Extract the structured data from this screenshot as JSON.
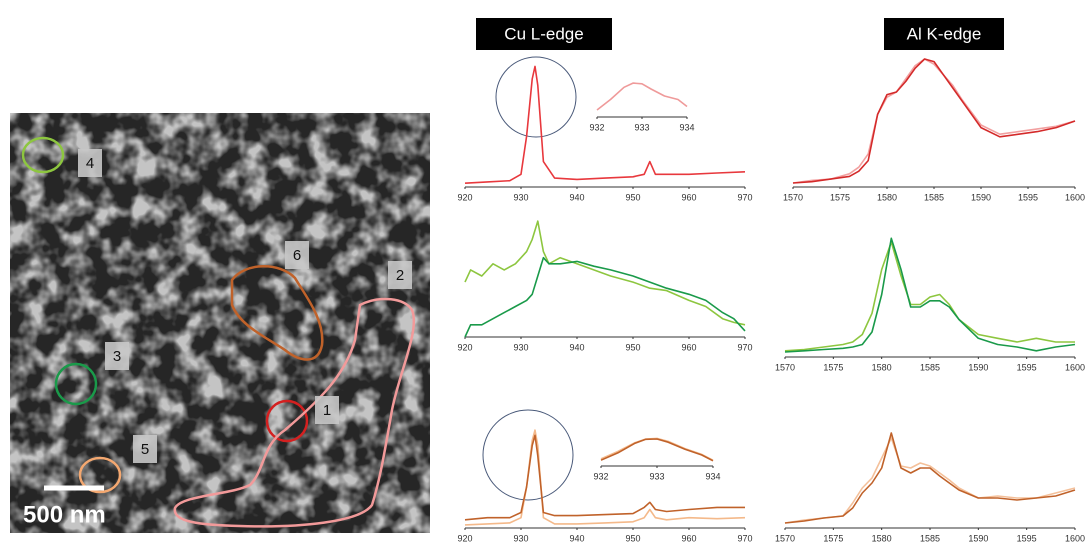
{
  "figure": {
    "headers": [
      "Cu L-edge",
      "Al K-edge"
    ],
    "scale_bar": "500 nm",
    "region_labels": [
      "1",
      "2",
      "3",
      "4",
      "5",
      "6"
    ]
  },
  "chart_data": [
    {
      "type": "line",
      "x": [
        920,
        924,
        928,
        930,
        931,
        932,
        932.5,
        933,
        934,
        936,
        940,
        945,
        950,
        952,
        953,
        954,
        956,
        960,
        965,
        970
      ],
      "series": [
        {
          "name": "Cu region 1",
          "color": "#e8383d",
          "values": [
            0.03,
            0.04,
            0.05,
            0.1,
            0.4,
            0.85,
            0.95,
            0.8,
            0.2,
            0.07,
            0.06,
            0.07,
            0.08,
            0.1,
            0.2,
            0.1,
            0.1,
            0.1,
            0.11,
            0.12
          ]
        }
      ],
      "xlim": [
        920,
        970
      ],
      "xticks": [
        920,
        930,
        940,
        950,
        960,
        970
      ],
      "ylim": [
        0,
        1
      ]
    },
    {
      "type": "line",
      "x": [
        932,
        932.3,
        932.6,
        932.8,
        933,
        933.2,
        933.5,
        933.8,
        934
      ],
      "series": [
        {
          "name": "Cu region 1 zoom",
          "color": "#ef9a9a",
          "values": [
            0.2,
            0.5,
            0.85,
            0.97,
            0.95,
            0.8,
            0.6,
            0.5,
            0.3
          ]
        }
      ],
      "xlim": [
        932,
        934
      ],
      "xticks": [
        932,
        933,
        934
      ],
      "ylim": [
        0,
        1
      ]
    },
    {
      "type": "line",
      "x": [
        920,
        921,
        923,
        925,
        927,
        929,
        931,
        932,
        933,
        934,
        935,
        937,
        940,
        943,
        946,
        950,
        953,
        956,
        960,
        963,
        966,
        968,
        970
      ],
      "series": [
        {
          "name": "Cu region 4",
          "color": "#8dc63f",
          "values": [
            0.45,
            0.55,
            0.5,
            0.6,
            0.55,
            0.6,
            0.7,
            0.8,
            0.95,
            0.7,
            0.6,
            0.65,
            0.6,
            0.55,
            0.5,
            0.45,
            0.4,
            0.38,
            0.3,
            0.25,
            0.15,
            0.12,
            0.1
          ]
        },
        {
          "name": "Cu region 3",
          "color": "#1a9a4a",
          "values": [
            0.0,
            0.1,
            0.1,
            0.15,
            0.2,
            0.25,
            0.3,
            0.35,
            0.5,
            0.65,
            0.6,
            0.6,
            0.62,
            0.58,
            0.55,
            0.5,
            0.45,
            0.4,
            0.35,
            0.3,
            0.2,
            0.15,
            0.05
          ]
        }
      ],
      "xlim": [
        920,
        970
      ],
      "xticks": [
        920,
        930,
        940,
        950,
        960,
        970
      ],
      "ylim": [
        0,
        1
      ]
    },
    {
      "type": "line",
      "x": [
        920,
        924,
        928,
        930,
        931,
        932,
        932.5,
        933,
        934,
        936,
        940,
        945,
        950,
        952,
        953,
        954,
        956,
        960,
        965,
        970
      ],
      "series": [
        {
          "name": "Cu region 5",
          "color": "#f4b98a",
          "values": [
            0.03,
            0.04,
            0.05,
            0.1,
            0.4,
            0.85,
            0.95,
            0.8,
            0.1,
            0.04,
            0.04,
            0.05,
            0.06,
            0.1,
            0.18,
            0.1,
            0.08,
            0.1,
            0.09,
            0.1
          ]
        },
        {
          "name": "Cu region 6",
          "color": "#c0622a",
          "values": [
            0.08,
            0.1,
            0.1,
            0.15,
            0.4,
            0.8,
            0.9,
            0.7,
            0.15,
            0.12,
            0.12,
            0.13,
            0.14,
            0.2,
            0.25,
            0.18,
            0.16,
            0.18,
            0.2,
            0.2
          ]
        }
      ],
      "xlim": [
        920,
        970
      ],
      "xticks": [
        920,
        930,
        940,
        950,
        960,
        970
      ],
      "ylim": [
        0,
        1
      ]
    },
    {
      "type": "line",
      "x": [
        932,
        932.3,
        932.6,
        932.8,
        933,
        933.2,
        933.5,
        933.8,
        934
      ],
      "series": [
        {
          "name": "Cu region 5 zoom",
          "color": "#f4b98a",
          "values": [
            0.25,
            0.5,
            0.8,
            0.93,
            0.95,
            0.85,
            0.6,
            0.4,
            0.2
          ]
        },
        {
          "name": "Cu region 6 zoom",
          "color": "#c0622a",
          "values": [
            0.2,
            0.45,
            0.78,
            0.92,
            0.93,
            0.82,
            0.58,
            0.38,
            0.18
          ]
        }
      ],
      "xlim": [
        932,
        934
      ],
      "xticks": [
        932,
        933,
        934
      ],
      "ylim": [
        0,
        1
      ]
    },
    {
      "type": "line",
      "x": [
        1570,
        1572,
        1574,
        1576,
        1577,
        1578,
        1579,
        1580,
        1581,
        1582,
        1583,
        1584,
        1585,
        1586,
        1587,
        1588,
        1590,
        1592,
        1594,
        1596,
        1598,
        1600
      ],
      "series": [
        {
          "name": "Al region 2",
          "color": "#f2a0a0",
          "values": [
            0.03,
            0.05,
            0.06,
            0.1,
            0.15,
            0.25,
            0.55,
            0.68,
            0.72,
            0.82,
            0.92,
            0.97,
            0.93,
            0.85,
            0.77,
            0.66,
            0.47,
            0.4,
            0.42,
            0.44,
            0.46,
            0.5
          ]
        },
        {
          "name": "Al region 1",
          "color": "#d42a2a",
          "values": [
            0.03,
            0.04,
            0.06,
            0.08,
            0.12,
            0.2,
            0.55,
            0.7,
            0.72,
            0.8,
            0.9,
            0.97,
            0.95,
            0.85,
            0.75,
            0.65,
            0.45,
            0.38,
            0.4,
            0.42,
            0.45,
            0.5
          ]
        }
      ],
      "xlim": [
        1570,
        1600
      ],
      "xticks": [
        1570,
        1575,
        1580,
        1585,
        1590,
        1595,
        1600
      ],
      "ylim": [
        0,
        1
      ]
    },
    {
      "type": "line",
      "x": [
        1570,
        1572,
        1574,
        1576,
        1577,
        1578,
        1579,
        1580,
        1581,
        1582,
        1583,
        1584,
        1585,
        1586,
        1587,
        1588,
        1590,
        1592,
        1594,
        1596,
        1598,
        1600
      ],
      "series": [
        {
          "name": "Al region 4",
          "color": "#8dc63f",
          "values": [
            0.05,
            0.06,
            0.08,
            0.1,
            0.12,
            0.18,
            0.35,
            0.7,
            0.92,
            0.65,
            0.42,
            0.42,
            0.48,
            0.5,
            0.42,
            0.3,
            0.18,
            0.15,
            0.12,
            0.15,
            0.12,
            0.12
          ]
        },
        {
          "name": "Al region 3",
          "color": "#1a9a4a",
          "values": [
            0.04,
            0.05,
            0.06,
            0.07,
            0.08,
            0.1,
            0.2,
            0.5,
            0.95,
            0.7,
            0.4,
            0.4,
            0.45,
            0.45,
            0.4,
            0.3,
            0.15,
            0.1,
            0.08,
            0.05,
            0.08,
            0.1
          ]
        }
      ],
      "xlim": [
        1570,
        1600
      ],
      "xticks": [
        1570,
        1575,
        1580,
        1585,
        1590,
        1595,
        1600
      ],
      "ylim": [
        0,
        1
      ]
    },
    {
      "type": "line",
      "x": [
        1570,
        1572,
        1574,
        1576,
        1577,
        1578,
        1579,
        1580,
        1581,
        1582,
        1583,
        1584,
        1585,
        1586,
        1587,
        1588,
        1590,
        1592,
        1594,
        1596,
        1598,
        1600
      ],
      "series": [
        {
          "name": "Al region 5",
          "color": "#f4c09a",
          "values": [
            0.05,
            0.08,
            0.1,
            0.12,
            0.25,
            0.4,
            0.5,
            0.7,
            0.9,
            0.62,
            0.6,
            0.65,
            0.62,
            0.55,
            0.48,
            0.4,
            0.3,
            0.32,
            0.3,
            0.3,
            0.35,
            0.4
          ]
        },
        {
          "name": "Al region 6",
          "color": "#c0622a",
          "values": [
            0.05,
            0.07,
            0.1,
            0.12,
            0.2,
            0.35,
            0.45,
            0.6,
            0.95,
            0.6,
            0.55,
            0.6,
            0.6,
            0.52,
            0.45,
            0.38,
            0.3,
            0.3,
            0.28,
            0.3,
            0.32,
            0.38
          ]
        }
      ],
      "xlim": [
        1570,
        1600
      ],
      "xticks": [
        1570,
        1575,
        1580,
        1585,
        1590,
        1595,
        1600
      ],
      "ylim": [
        0,
        1
      ]
    }
  ]
}
